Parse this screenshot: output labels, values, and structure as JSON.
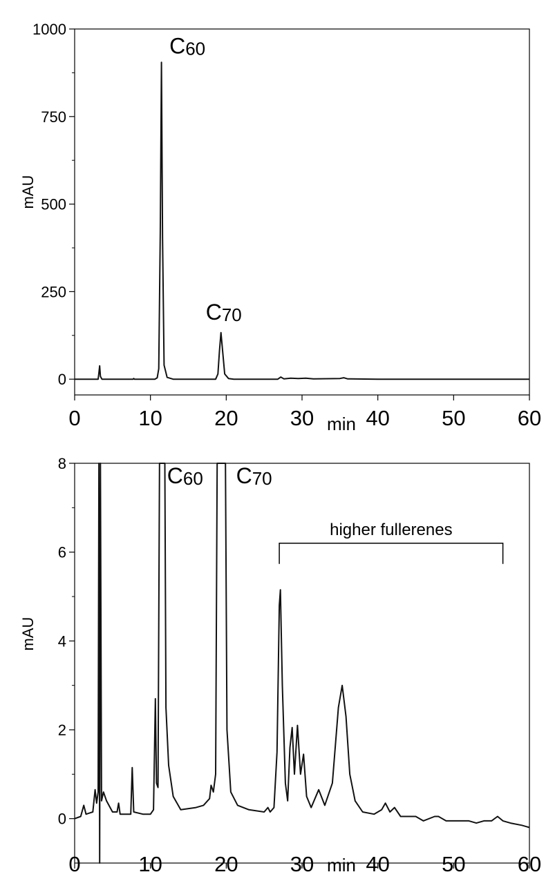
{
  "chart_data": [
    {
      "type": "line",
      "ylabel": "mAU",
      "xunit": "min",
      "xlim": [
        0,
        60
      ],
      "ylim": [
        -45,
        1000
      ],
      "xticks": [
        0,
        10,
        20,
        30,
        40,
        50,
        60
      ],
      "yticks": [
        0,
        250,
        500,
        750,
        1000
      ],
      "annotations": [
        {
          "main": "C",
          "sub": "60",
          "x": 12.5,
          "y": 930
        },
        {
          "main": "C",
          "sub": "70",
          "x": 17.3,
          "y": 170
        }
      ],
      "series": [
        {
          "values": [
            [
              0,
              0
            ],
            [
              3.1,
              0
            ],
            [
              3.2,
              18
            ],
            [
              3.3,
              38
            ],
            [
              3.4,
              8
            ],
            [
              3.6,
              0
            ],
            [
              7.7,
              0
            ],
            [
              7.8,
              2
            ],
            [
              7.9,
              0
            ],
            [
              10.6,
              0
            ],
            [
              10.9,
              4
            ],
            [
              11.1,
              30
            ],
            [
              11.3,
              420
            ],
            [
              11.45,
              905
            ],
            [
              11.6,
              400
            ],
            [
              11.8,
              40
            ],
            [
              12.2,
              5
            ],
            [
              13,
              0
            ],
            [
              18.6,
              0
            ],
            [
              18.9,
              15
            ],
            [
              19.1,
              80
            ],
            [
              19.3,
              133
            ],
            [
              19.5,
              85
            ],
            [
              19.8,
              15
            ],
            [
              20.3,
              2
            ],
            [
              21,
              0
            ],
            [
              26.8,
              0
            ],
            [
              27.2,
              6
            ],
            [
              27.6,
              1
            ],
            [
              28.5,
              3
            ],
            [
              29.5,
              2
            ],
            [
              30.5,
              3
            ],
            [
              31.5,
              1
            ],
            [
              35,
              2
            ],
            [
              35.5,
              4
            ],
            [
              36,
              1
            ],
            [
              40,
              0
            ],
            [
              60,
              0
            ]
          ]
        }
      ]
    },
    {
      "type": "line",
      "ylabel": "mAU",
      "xunit": "min",
      "xlim": [
        0,
        60
      ],
      "ylim": [
        -1,
        8
      ],
      "xticks": [
        0,
        10,
        20,
        30,
        40,
        50,
        60
      ],
      "yticks": [
        0,
        2,
        4,
        6,
        8
      ],
      "annotations": [
        {
          "main": "C",
          "sub": "60",
          "x": 12.2,
          "y": 7.55
        },
        {
          "main": "C",
          "sub": "70",
          "x": 21.3,
          "y": 7.55
        }
      ],
      "bracket": {
        "label": "higher fullerenes",
        "x_start": 27.0,
        "x_end": 56.5,
        "y": 6.2
      },
      "series": [
        {
          "values": [
            [
              0,
              0
            ],
            [
              0.8,
              0.05
            ],
            [
              1.2,
              0.3
            ],
            [
              1.5,
              0.1
            ],
            [
              2.4,
              0.15
            ],
            [
              2.7,
              0.65
            ],
            [
              2.9,
              0.35
            ],
            [
              3.1,
              0.6
            ],
            [
              3.2,
              8.5
            ],
            [
              3.3,
              -1.2
            ],
            [
              3.4,
              8.5
            ],
            [
              3.55,
              0.4
            ],
            [
              3.8,
              0.6
            ],
            [
              4.2,
              0.4
            ],
            [
              5,
              0.15
            ],
            [
              5.6,
              0.15
            ],
            [
              5.8,
              0.35
            ],
            [
              6,
              0.1
            ],
            [
              7.4,
              0.1
            ],
            [
              7.6,
              1.15
            ],
            [
              7.8,
              0.15
            ],
            [
              9,
              0.1
            ],
            [
              10,
              0.1
            ],
            [
              10.4,
              0.2
            ],
            [
              10.65,
              2.7
            ],
            [
              10.8,
              0.8
            ],
            [
              11,
              0.7
            ],
            [
              11.2,
              8.5
            ],
            [
              11.9,
              8.5
            ],
            [
              12.05,
              2.5
            ],
            [
              12.4,
              1.2
            ],
            [
              13,
              0.5
            ],
            [
              14,
              0.2
            ],
            [
              16,
              0.25
            ],
            [
              17,
              0.3
            ],
            [
              17.8,
              0.45
            ],
            [
              18,
              0.75
            ],
            [
              18.3,
              0.6
            ],
            [
              18.6,
              1.0
            ],
            [
              18.8,
              8.5
            ],
            [
              19.9,
              8.5
            ],
            [
              20.1,
              2.0
            ],
            [
              20.6,
              0.6
            ],
            [
              21.5,
              0.3
            ],
            [
              23,
              0.2
            ],
            [
              25,
              0.15
            ],
            [
              25.5,
              0.25
            ],
            [
              25.8,
              0.15
            ],
            [
              26.3,
              0.25
            ],
            [
              26.7,
              1.5
            ],
            [
              27.0,
              4.8
            ],
            [
              27.15,
              5.15
            ],
            [
              27.4,
              3.0
            ],
            [
              27.8,
              0.8
            ],
            [
              28.1,
              0.4
            ],
            [
              28.4,
              1.6
            ],
            [
              28.7,
              2.05
            ],
            [
              29.0,
              1.0
            ],
            [
              29.4,
              2.1
            ],
            [
              29.8,
              1.0
            ],
            [
              30.2,
              1.45
            ],
            [
              30.6,
              0.5
            ],
            [
              31.2,
              0.25
            ],
            [
              32.2,
              0.65
            ],
            [
              33.0,
              0.3
            ],
            [
              34.0,
              0.8
            ],
            [
              34.8,
              2.5
            ],
            [
              35.3,
              3.0
            ],
            [
              35.8,
              2.3
            ],
            [
              36.3,
              1.0
            ],
            [
              37,
              0.4
            ],
            [
              38,
              0.15
            ],
            [
              39.5,
              0.1
            ],
            [
              40.5,
              0.2
            ],
            [
              41,
              0.35
            ],
            [
              41.6,
              0.15
            ],
            [
              42.2,
              0.25
            ],
            [
              43,
              0.05
            ],
            [
              44.5,
              0.05
            ],
            [
              45,
              0.05
            ],
            [
              46,
              -0.05
            ],
            [
              47.5,
              0.05
            ],
            [
              48,
              0.05
            ],
            [
              49,
              -0.05
            ],
            [
              50,
              -0.05
            ],
            [
              51,
              -0.05
            ],
            [
              52,
              -0.05
            ],
            [
              53,
              -0.1
            ],
            [
              54,
              -0.05
            ],
            [
              55,
              -0.05
            ],
            [
              55.8,
              0.05
            ],
            [
              56.5,
              -0.05
            ],
            [
              57.5,
              -0.1
            ],
            [
              59,
              -0.15
            ],
            [
              60,
              -0.2
            ]
          ]
        }
      ]
    }
  ]
}
